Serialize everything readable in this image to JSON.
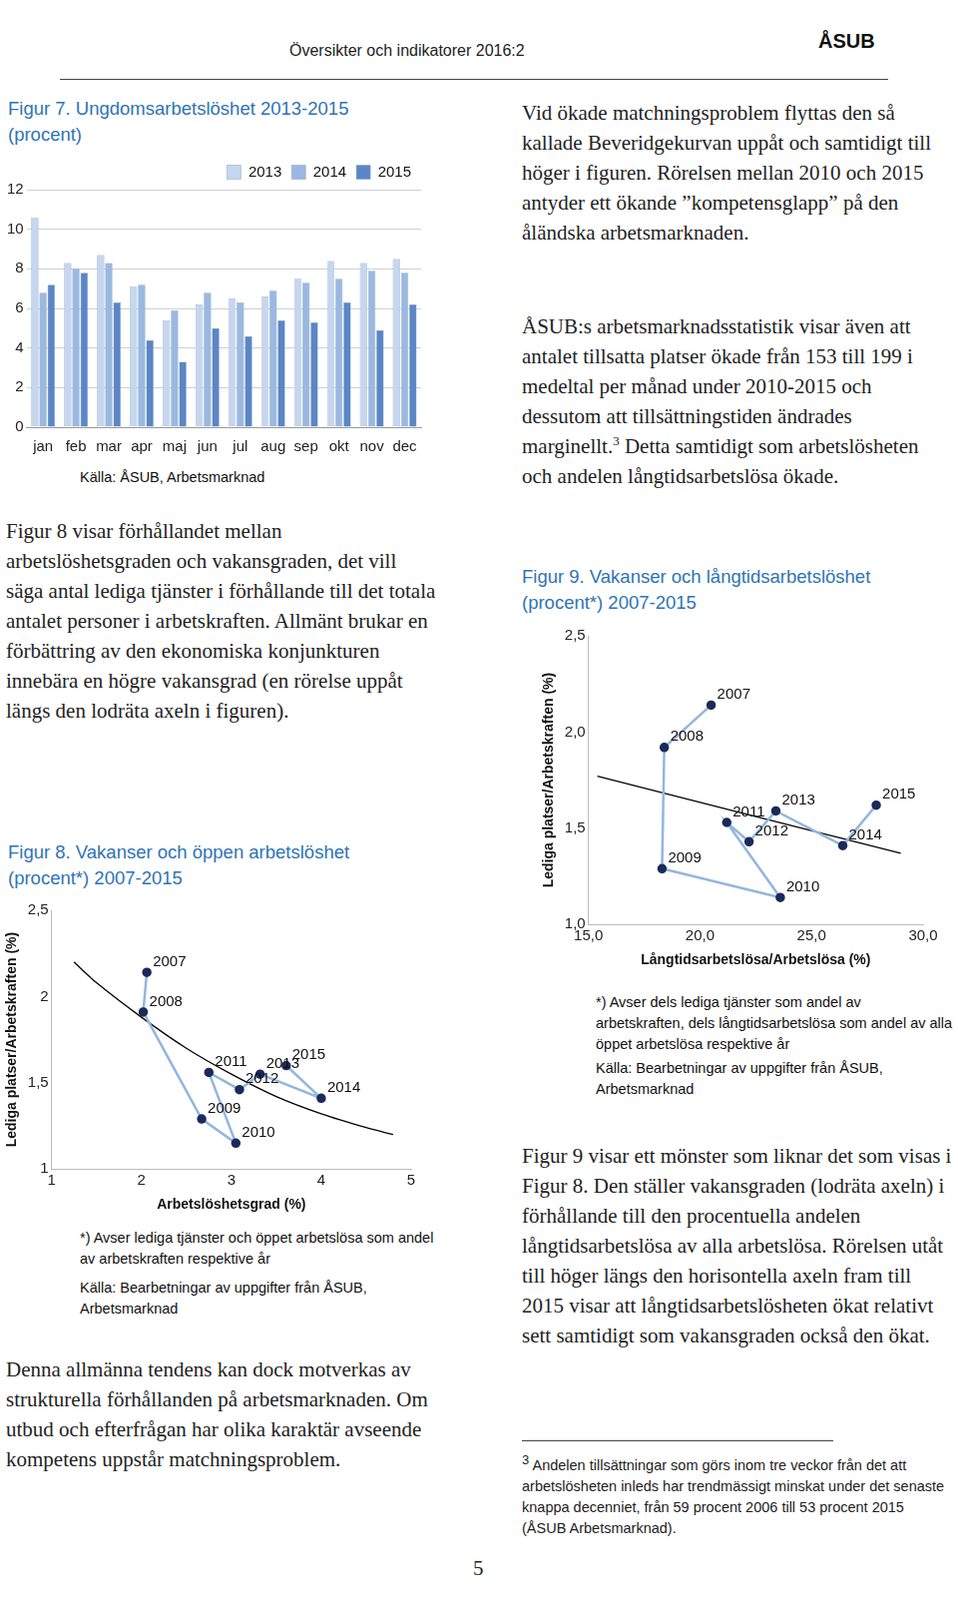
{
  "document": {
    "header": "Översikter och indikatorer 2016:2",
    "logo": "ÅSUB",
    "page_number": "5",
    "left_column": {
      "paragraph_1": "Figur 8 visar förhållandet mellan arbetslöshetsgraden och vakansgraden, det vill säga antal lediga tjänster i förhållande till det totala antalet personer i arbetskraften. Allmänt brukar en förbättring av den ekonomiska konjunkturen innebära en högre vakansgrad (en rörelse uppåt längs den lodräta axeln i figuren).",
      "paragraph_2": "Denna allmänna tendens kan dock motverkas av strukturella förhållanden på arbetsmarknaden. Om utbud och efterfrågan har olika karaktär avseende kompetens uppstår matchningsproblem."
    },
    "right_column": {
      "paragraph_1": "Vid ökade matchningsproblem flyttas den så kallade Beveridgekurvan uppåt och samtidigt till höger i figuren. Rörelsen mellan 2010 och 2015 antyder ett ökande ”kompetensglapp” på den åländska arbetsmarknaden.",
      "paragraph_2": {
        "before": "ÅSUB:s arbetsmarknadsstatistik visar även att antalet tillsatta platser ökade från 153 till 199 i medeltal per månad under 2010-2015 och dessutom att tillsättningstiden ändrades marginellt.",
        "footnote_mark": "3",
        "after": " Detta samtidigt som arbetslösheten och andelen långtidsarbetslösa ökade."
      },
      "paragraph_3": "Figur 9 visar ett mönster som liknar det som visas i Figur 8. Den ställer vakansgraden (lodräta axeln) i förhållande till den procentuella andelen långtidsarbetslösa av alla arbetslösa. Rörelsen utåt till höger längs den horisontella axeln fram till 2015 visar att långtidsarbetslösheten ökat relativt sett samtidigt som vakansgraden också den ökat.",
      "footnote": {
        "mark": "3",
        "text": "Andelen tillsättningar som görs inom tre veckor från det att arbetslösheten inleds har trendmässigt minskat under det senaste knappa decenniet, från 59 procent 2006 till 53 procent 2015 (ÅSUB Arbetsmarknad)."
      }
    }
  },
  "chart_data": [
    {
      "type": "bar",
      "title": "Figur 7. Ungdomsarbetslöshet 2013-2015 (procent)",
      "source": "Källa: ÅSUB, Arbetsmarknad",
      "categories": [
        "jan",
        "feb",
        "mar",
        "apr",
        "maj",
        "jun",
        "jul",
        "aug",
        "sep",
        "okt",
        "nov",
        "dec"
      ],
      "series": [
        {
          "name": "2013",
          "color": "#c6d6ee",
          "values": [
            10.6,
            8.3,
            8.7,
            7.1,
            5.4,
            6.2,
            6.5,
            6.6,
            7.5,
            8.4,
            8.3,
            8.5
          ]
        },
        {
          "name": "2014",
          "color": "#9bb9e0",
          "values": [
            6.8,
            8.0,
            8.3,
            7.2,
            5.9,
            6.8,
            6.3,
            6.9,
            7.3,
            7.5,
            7.9,
            7.8
          ]
        },
        {
          "name": "2015",
          "color": "#5b86c5",
          "values": [
            7.2,
            7.8,
            6.3,
            4.4,
            3.3,
            5.0,
            4.6,
            5.4,
            5.3,
            6.3,
            4.9,
            6.2
          ]
        }
      ],
      "ylim": [
        0,
        12
      ],
      "yticks": [
        0,
        2,
        4,
        6,
        8,
        10,
        12
      ],
      "grid": true,
      "legend": "top"
    },
    {
      "type": "scatter",
      "title": "Figur 8. Vakanser och öppen arbetslöshet (procent*) 2007-2015",
      "note": "*) Avser lediga tjänster och öppet arbetslösa som andel av arbetskraften respektive år",
      "source": "Källa: Bearbetningar av uppgifter från ÅSUB, Arbetsmarknad",
      "xlabel": "Arbetslöshetsgrad (%)",
      "ylabel": "Lediga platser/Arbetskraften (%)",
      "series": [
        {
          "type": "line",
          "color": "#000000",
          "marker": "none",
          "line_style": "solid",
          "x": [
            1.25,
            1.5,
            2.0,
            2.5,
            3.0,
            3.5,
            4.0,
            4.5,
            4.8
          ],
          "values": [
            2.2,
            2.08,
            1.88,
            1.7,
            1.55,
            1.42,
            1.32,
            1.24,
            1.2
          ]
        },
        {
          "type": "scatter",
          "color": "#1c2a5a",
          "marker": "circle",
          "line_style": "solid",
          "x": [
            2.06,
            2.02,
            2.67,
            3.05,
            2.75,
            3.09,
            3.32,
            4.0,
            3.61
          ],
          "values": [
            2.14,
            1.91,
            1.29,
            1.15,
            1.56,
            1.46,
            1.55,
            1.41,
            1.6
          ],
          "point_labels": [
            "2007",
            "2008",
            "2009",
            "2010",
            "2011",
            "2012",
            "2013",
            "2014",
            "2015"
          ]
        }
      ],
      "xlim": [
        1,
        5
      ],
      "xticks": [
        1,
        2,
        3,
        4,
        5
      ],
      "ylim": [
        1,
        2.5
      ],
      "yticks": [
        1,
        {
          "value": 1.5,
          "label": "1,5"
        },
        2,
        {
          "value": 2.5,
          "label": "2,5"
        }
      ],
      "grid": false
    },
    {
      "type": "scatter",
      "title": "Figur 9. Vakanser och långtidsarbetslöshet (procent*) 2007-2015",
      "note": "*) Avser dels lediga tjänster som andel av arbetskraften, dels långtidsarbetslösa som andel av alla öppet arbetslösa respektive år",
      "source": "Källa: Bearbetningar av uppgifter från ÅSUB, Arbetsmarknad",
      "xlabel": "Långtidsarbetslösa/Arbetslösa (%)",
      "ylabel": "Lediga platser/Arbetskraften (%)",
      "series": [
        {
          "type": "line",
          "color": "#000000",
          "marker": "none",
          "line_style": "solid",
          "x": [
            15.4,
            29.0
          ],
          "values": [
            1.77,
            1.37
          ]
        },
        {
          "type": "scatter",
          "color": "#1c2a5a",
          "marker": "circle",
          "line_style": "solid",
          "x": [
            20.5,
            18.4,
            18.3,
            23.6,
            21.2,
            22.2,
            23.4,
            26.4,
            27.9
          ],
          "values": [
            2.14,
            1.92,
            1.29,
            1.14,
            1.53,
            1.43,
            1.59,
            1.41,
            1.62
          ],
          "point_labels": [
            "2007",
            "2008",
            "2009",
            "2010",
            "2011",
            "2012",
            "2013",
            "2014",
            "2015"
          ]
        }
      ],
      "xlim": [
        15,
        30
      ],
      "xticks": [
        {
          "value": 15,
          "label": "15,0"
        },
        {
          "value": 20,
          "label": "20,0"
        },
        {
          "value": 25,
          "label": "25,0"
        },
        {
          "value": 30,
          "label": "30,0"
        }
      ],
      "ylim": [
        1,
        2.5
      ],
      "yticks": [
        {
          "value": 1,
          "label": "1,0"
        },
        {
          "value": 1.5,
          "label": "1,5"
        },
        {
          "value": 2,
          "label": "2,0"
        },
        {
          "value": 2.5,
          "label": "2,5"
        }
      ],
      "grid": false
    }
  ]
}
